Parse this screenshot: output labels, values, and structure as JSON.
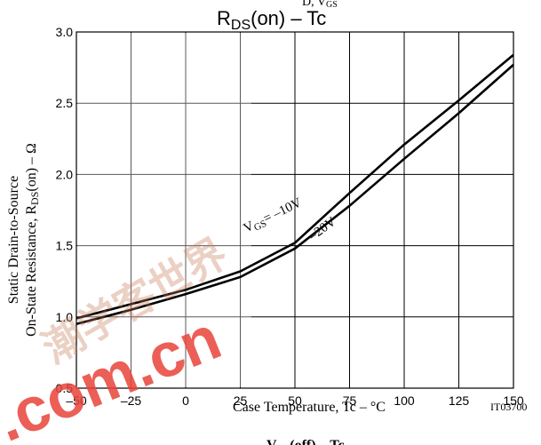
{
  "header": {
    "clipped_fragment": "D, V",
    "clipped_fragment_sub": "GS"
  },
  "chart_data": {
    "type": "line",
    "title_main": "R",
    "title_sub": "DS",
    "title_rest": "(on)  –  Tc",
    "xlabel": "Case Temperature, Tc  –  °C",
    "ylabel_line1": "Static Drain-to-Source",
    "ylabel_line2_pre": "On-State Resistance, R",
    "ylabel_line2_sub": "DS",
    "ylabel_line2_post": "(on)  –  Ω",
    "xlim": [
      -50,
      150
    ],
    "ylim": [
      0.5,
      3.0
    ],
    "x_ticks": [
      "–50",
      "–25",
      "0",
      "25",
      "50",
      "75",
      "100",
      "125",
      "150"
    ],
    "x_tick_values": [
      -50,
      -25,
      0,
      25,
      50,
      75,
      100,
      125,
      150
    ],
    "y_ticks": [
      "0.5",
      "1.0",
      "1.5",
      "2.0",
      "2.5",
      "3.0"
    ],
    "y_tick_values": [
      0.5,
      1.0,
      1.5,
      2.0,
      2.5,
      3.0
    ],
    "grid": true,
    "series": [
      {
        "name": "V_GS = –10V",
        "label_main": "V",
        "label_sub": "GS",
        "label_rest": "= –10V",
        "x": [
          -50,
          -25,
          0,
          25,
          50,
          75,
          100,
          125,
          150
        ],
        "y": [
          0.99,
          1.09,
          1.19,
          1.32,
          1.52,
          1.87,
          2.21,
          2.52,
          2.84
        ]
      },
      {
        "name": "–20V",
        "label_main": "–20V",
        "x": [
          -50,
          -25,
          0,
          25,
          50,
          75,
          100,
          125,
          150
        ],
        "y": [
          0.95,
          1.05,
          1.16,
          1.28,
          1.48,
          1.78,
          2.11,
          2.43,
          2.77
        ]
      }
    ],
    "annotation": "IT03700",
    "footer_fragment": "V",
    "footer_fragment_sub": "GS",
    "footer_fragment_rest": "(off)  –  Tc"
  },
  "watermark": {
    "text": ".com.cn",
    "color": "#e8443a",
    "chinese": "潮学客世界"
  },
  "colors": {
    "line": "#000000",
    "grid": "#000000"
  }
}
